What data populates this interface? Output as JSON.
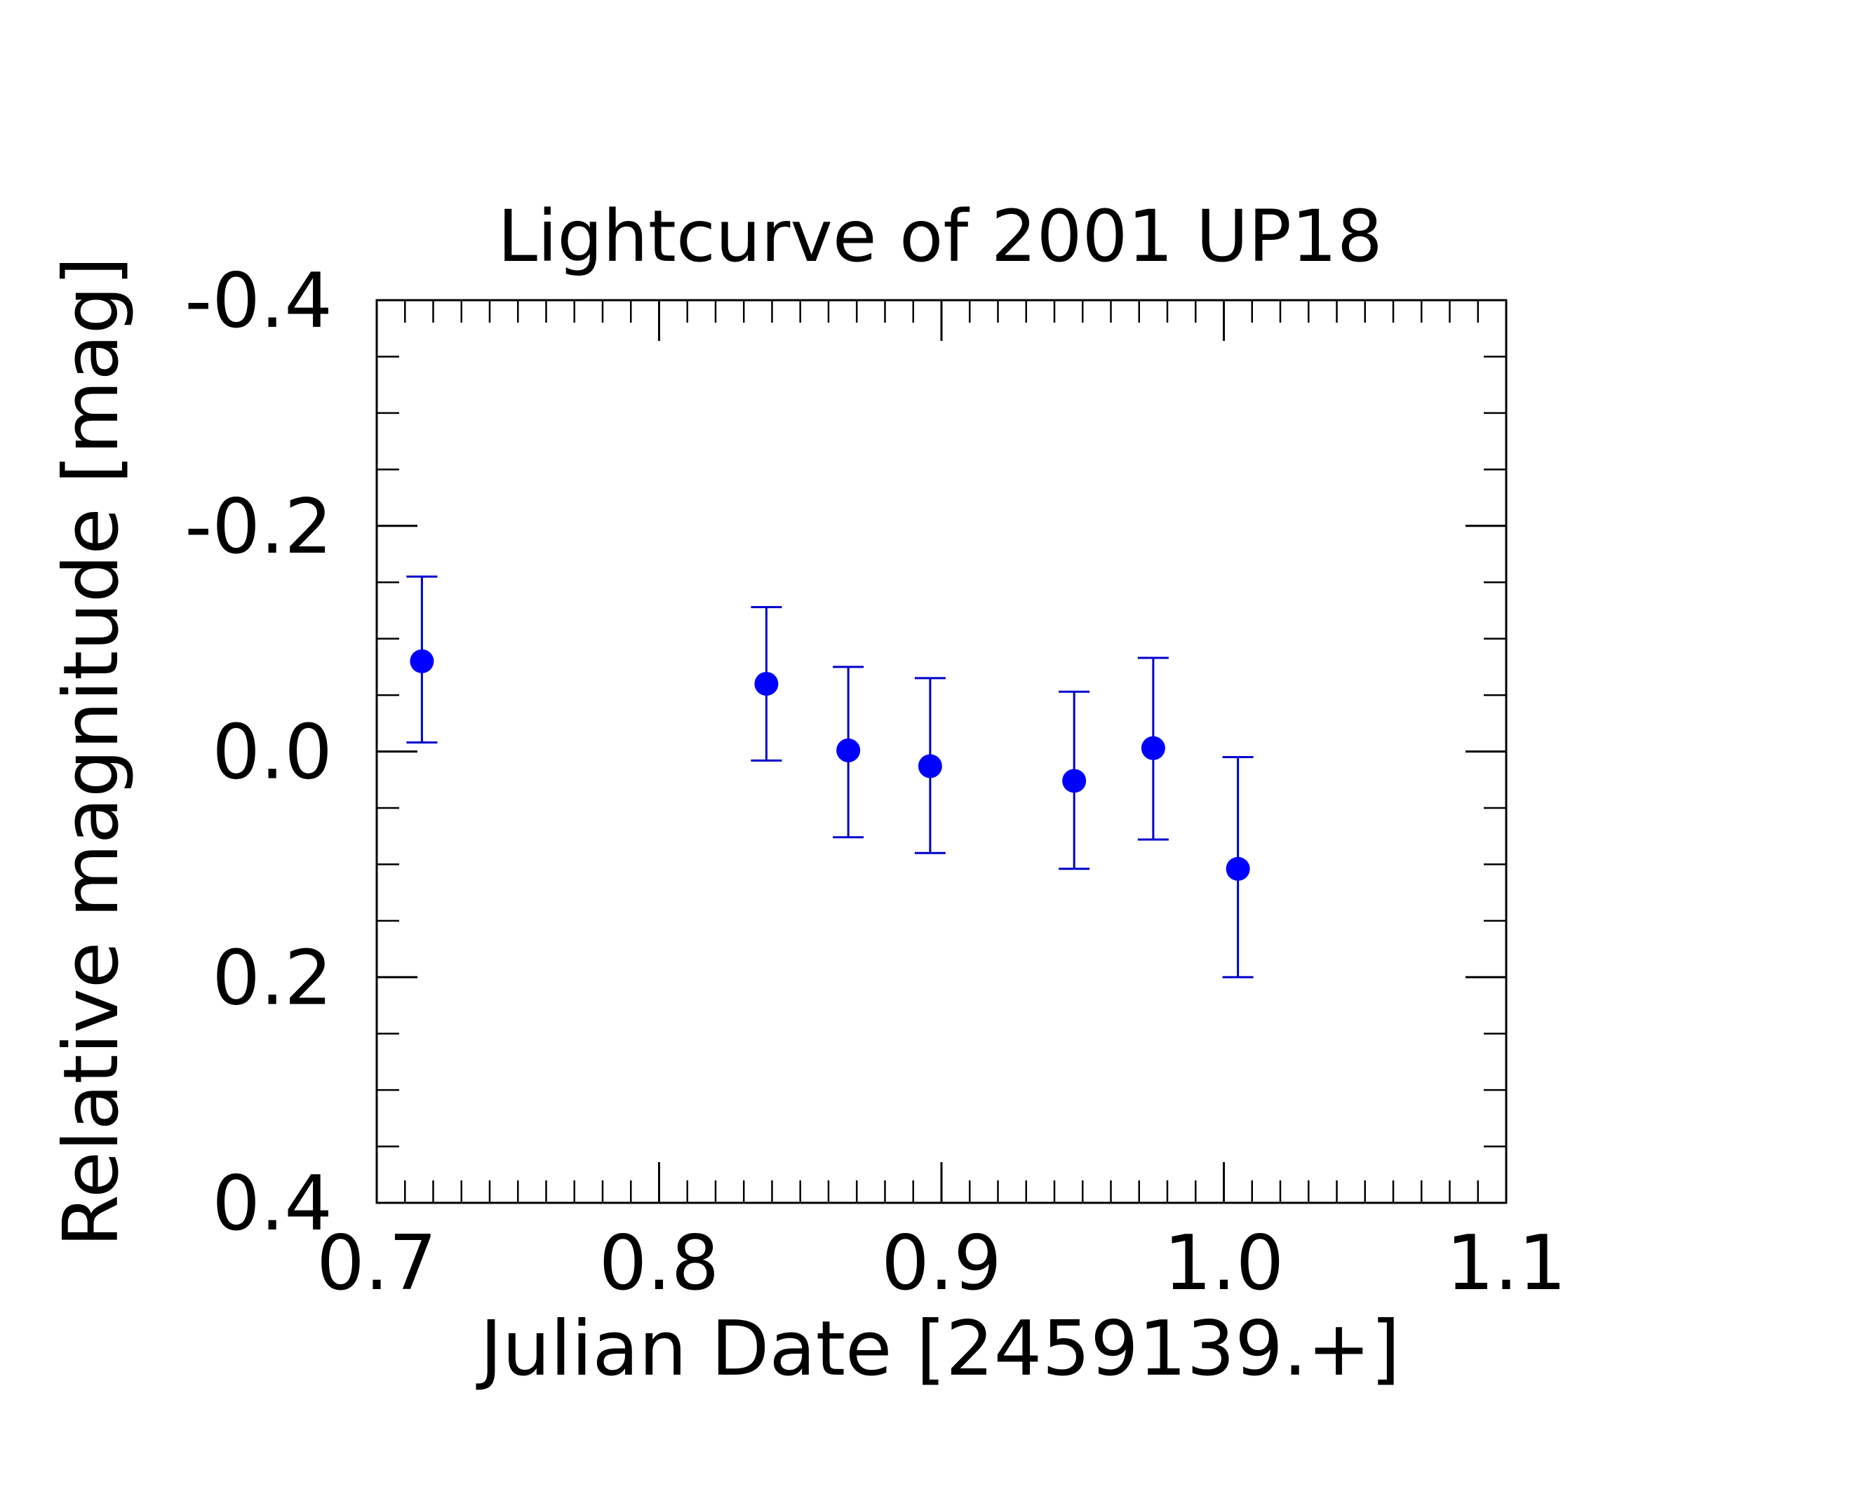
{
  "chart_data": {
    "type": "scatter",
    "title": "Lightcurve of 2001 UP18",
    "xlabel": "Julian Date [2459139.+]",
    "ylabel": "Relative magnitude [mag]",
    "xlim": [
      0.7,
      1.1
    ],
    "ylim": [
      0.4,
      -0.4
    ],
    "y_inverted": true,
    "xticks": [
      0.7,
      0.8,
      0.9,
      1.0,
      1.1
    ],
    "xtick_labels": [
      "0.7",
      "0.8",
      "0.9",
      "1.0",
      "1.1"
    ],
    "yticks": [
      -0.4,
      -0.2,
      0.0,
      0.2,
      0.4
    ],
    "ytick_labels": [
      "-0.4",
      "-0.2",
      "0.0",
      "0.2",
      "0.4"
    ],
    "x_minor_step": 0.01,
    "y_minor_step": 0.05,
    "grid": false,
    "legend": false,
    "marker_color": "#0000ff",
    "errorbar_color": "#0000cc",
    "axis_color": "#000000",
    "series": [
      {
        "x": [
          0.716,
          0.838,
          0.867,
          0.896,
          0.947,
          0.975,
          1.005
        ],
        "y": [
          -0.08,
          -0.06,
          -0.001,
          0.013,
          0.026,
          -0.003,
          0.104
        ],
        "yerr_low": [
          -0.155,
          -0.128,
          -0.075,
          -0.065,
          -0.053,
          -0.083,
          0.005
        ],
        "yerr_high": [
          -0.008,
          0.008,
          0.076,
          0.09,
          0.104,
          0.078,
          0.2
        ]
      }
    ]
  }
}
